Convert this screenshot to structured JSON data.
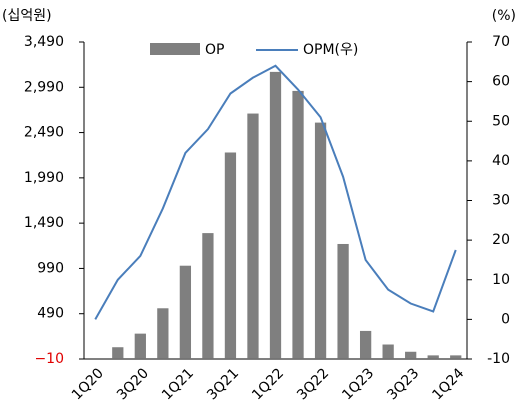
{
  "chart_data": {
    "type": "bar",
    "y_unit": "(십억원)",
    "y2_unit": "(%)",
    "categories": [
      "1Q20",
      null,
      "3Q20",
      null,
      "1Q21",
      null,
      "3Q21",
      null,
      "1Q22",
      null,
      "3Q22",
      null,
      "1Q23",
      null,
      "3Q23",
      null,
      "1Q24"
    ],
    "series": [
      {
        "name": "OP",
        "type": "bar",
        "color": "#7f7f7f",
        "values": [
          0,
          120,
          270,
          550,
          1020,
          1380,
          2270,
          2700,
          3160,
          2950,
          2600,
          1260,
          300,
          150,
          70,
          30,
          30
        ]
      },
      {
        "name": "OPM(우)",
        "type": "line",
        "axis": "y2",
        "color": "#4a7ebb",
        "values": [
          0,
          10,
          16,
          28,
          42,
          48,
          57,
          61,
          64,
          58,
          51,
          36,
          15,
          7.5,
          4,
          2,
          17.5
        ]
      }
    ],
    "ylim": [
      -10,
      3490
    ],
    "yticks": [
      {
        "value": -10,
        "label": "−10"
      },
      490,
      990,
      {
        "value": 1490,
        "label": "1,490"
      },
      {
        "value": 1990,
        "label": "1,990"
      },
      {
        "value": 2490,
        "label": "2,490"
      },
      {
        "value": 2990,
        "label": "2,990"
      },
      {
        "value": 3490,
        "label": "3,490"
      }
    ],
    "y2lim": [
      -10,
      70
    ],
    "y2ticks": [
      -10,
      0,
      10,
      20,
      30,
      40,
      50,
      60,
      70
    ],
    "grid": false
  }
}
